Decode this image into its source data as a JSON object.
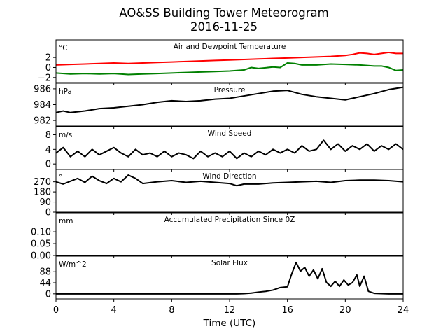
{
  "chart_data": {
    "type": "line",
    "title": "AO&SS Building Tower Meteorogram",
    "subtitle": "2016-11-25",
    "xlabel": "Time (UTC)",
    "xlim": [
      0,
      24
    ],
    "xticks": [
      0,
      4,
      8,
      12,
      16,
      20,
      24
    ],
    "xtick_labels": [
      "0",
      "4",
      "8",
      "12",
      "16",
      "20",
      "24"
    ],
    "grid": false,
    "panels": [
      {
        "title": "Air and Dewpoint Temperature",
        "unit": "°C",
        "ylim": [
          -3,
          5.5
        ],
        "yticks": [
          -2,
          0,
          2
        ],
        "ytick_labels": [
          "−2",
          "0",
          "2"
        ],
        "series": [
          {
            "color": "#ff0000",
            "x": [
              0,
              1,
              2,
              3,
              4,
              5,
              6,
              7,
              8,
              9,
              10,
              11,
              12,
              13,
              14,
              15,
              16,
              17,
              18,
              19,
              20,
              20.5,
              21,
              21.5,
              22,
              22.5,
              23,
              23.5,
              24
            ],
            "y": [
              0.5,
              0.6,
              0.7,
              0.8,
              0.9,
              0.8,
              0.9,
              1.0,
              1.1,
              1.2,
              1.3,
              1.4,
              1.5,
              1.6,
              1.7,
              1.8,
              1.9,
              2.0,
              2.1,
              2.2,
              2.4,
              2.6,
              2.9,
              2.8,
              2.6,
              2.8,
              3.0,
              2.8,
              2.8
            ]
          },
          {
            "color": "#008000",
            "x": [
              0,
              1,
              2,
              3,
              4,
              5,
              6,
              7,
              8,
              9,
              10,
              11,
              12,
              13,
              13.5,
              14,
              15,
              15.5,
              16,
              16.5,
              17,
              18,
              19,
              20,
              21,
              22,
              22.5,
              23,
              23.5,
              24
            ],
            "y": [
              -1.1,
              -1.3,
              -1.2,
              -1.3,
              -1.2,
              -1.4,
              -1.3,
              -1.2,
              -1.1,
              -1.0,
              -0.9,
              -0.8,
              -0.7,
              -0.5,
              0.0,
              -0.2,
              0.1,
              0.0,
              0.9,
              0.8,
              0.5,
              0.5,
              0.7,
              0.6,
              0.5,
              0.3,
              0.3,
              0.0,
              -0.6,
              -0.5
            ]
          }
        ]
      },
      {
        "title": "Pressure",
        "unit": "hPa",
        "ylim": [
          981.3,
          986.7
        ],
        "yticks": [
          982,
          984,
          986
        ],
        "ytick_labels": [
          "982",
          "984",
          "986"
        ],
        "series": [
          {
            "color": "#000000",
            "x": [
              0,
              0.5,
              1,
              2,
              3,
              4,
              5,
              6,
              7,
              8,
              9,
              10,
              11,
              12,
              13,
              14,
              15,
              16,
              17,
              18,
              19,
              20,
              21,
              22,
              23,
              24
            ],
            "y": [
              983.0,
              983.2,
              983.0,
              983.2,
              983.5,
              983.6,
              983.8,
              984.0,
              984.3,
              984.5,
              984.4,
              984.5,
              984.7,
              984.8,
              985.1,
              985.4,
              985.7,
              985.8,
              985.3,
              985.0,
              984.8,
              984.6,
              985.0,
              985.4,
              985.9,
              986.2
            ]
          }
        ]
      },
      {
        "title": "Wind Speed",
        "unit": "m/s",
        "ylim": [
          -1.5,
          10.2
        ],
        "yticks": [
          0,
          4,
          8
        ],
        "ytick_labels": [
          "0",
          "4",
          "8"
        ],
        "series": [
          {
            "color": "#000000",
            "x": [
              0,
              0.5,
              1,
              1.5,
              2,
              2.5,
              3,
              3.5,
              4,
              4.5,
              5,
              5.5,
              6,
              6.5,
              7,
              7.5,
              8,
              8.5,
              9,
              9.5,
              10,
              10.5,
              11,
              11.5,
              12,
              12.5,
              13,
              13.5,
              14,
              14.5,
              15,
              15.5,
              16,
              16.5,
              17,
              17.5,
              18,
              18.5,
              19,
              19.5,
              20,
              20.5,
              21,
              21.5,
              22,
              22.5,
              23,
              23.5,
              24
            ],
            "y": [
              3.0,
              4.5,
              2.0,
              3.5,
              2.0,
              4.0,
              2.5,
              3.5,
              4.5,
              3.0,
              2.0,
              4.0,
              2.5,
              3.0,
              2.0,
              3.5,
              2.0,
              3.0,
              2.5,
              1.5,
              3.5,
              2.0,
              3.0,
              2.0,
              3.5,
              1.5,
              3.0,
              2.0,
              3.5,
              2.5,
              4.0,
              3.0,
              4.0,
              3.0,
              5.0,
              3.5,
              4.0,
              6.5,
              4.0,
              5.5,
              3.5,
              5.0,
              4.0,
              5.5,
              3.5,
              5.0,
              4.0,
              5.5,
              4.0
            ]
          }
        ]
      },
      {
        "title": "Wind Direction",
        "unit": "°",
        "ylim": [
          0,
          380
        ],
        "yticks": [
          0,
          90,
          180,
          270
        ],
        "ytick_labels": [
          "0",
          "90",
          "180",
          "270"
        ],
        "series": [
          {
            "color": "#000000",
            "x": [
              0,
              0.5,
              1,
              1.5,
              2,
              2.5,
              3,
              3.5,
              4,
              4.5,
              5,
              5.5,
              6,
              7,
              8,
              9,
              10,
              11,
              12,
              12.5,
              13,
              14,
              15,
              16,
              17,
              18,
              19,
              20,
              21,
              22,
              23,
              24
            ],
            "y": [
              270,
              250,
              275,
              300,
              265,
              320,
              280,
              255,
              300,
              270,
              330,
              300,
              255,
              270,
              280,
              265,
              275,
              265,
              255,
              235,
              250,
              250,
              260,
              265,
              270,
              275,
              265,
              280,
              285,
              285,
              280,
              270
            ]
          }
        ]
      },
      {
        "title": "Accumulated Precipitation Since 0Z",
        "unit": "mm",
        "ylim": [
          0,
          0.18
        ],
        "yticks": [
          0.0,
          0.05,
          0.1
        ],
        "ytick_labels": [
          "0.00",
          "0.05",
          "0.10"
        ],
        "series": [
          {
            "color": "#000000",
            "x": [
              0,
              24
            ],
            "y": [
              0,
              0
            ]
          }
        ]
      },
      {
        "title": "Solar Flux",
        "unit": "W/m^2",
        "ylim": [
          -20,
          150
        ],
        "yticks": [
          0,
          44,
          88
        ],
        "ytick_labels": [
          "0",
          "44",
          "88"
        ],
        "series": [
          {
            "color": "#000000",
            "x": [
              0,
              12.5,
              13,
              13.5,
              14,
              14.5,
              15,
              15.5,
              16,
              16.3,
              16.6,
              16.9,
              17.2,
              17.5,
              17.8,
              18.1,
              18.4,
              18.7,
              19.0,
              19.3,
              19.6,
              19.9,
              20.2,
              20.5,
              20.8,
              21.0,
              21.3,
              21.6,
              22,
              23,
              24
            ],
            "y": [
              0,
              0,
              1,
              3,
              7,
              10,
              15,
              25,
              28,
              80,
              125,
              90,
              105,
              70,
              95,
              60,
              100,
              45,
              30,
              50,
              30,
              55,
              35,
              45,
              75,
              30,
              70,
              10,
              2,
              0,
              0
            ]
          }
        ]
      }
    ]
  }
}
